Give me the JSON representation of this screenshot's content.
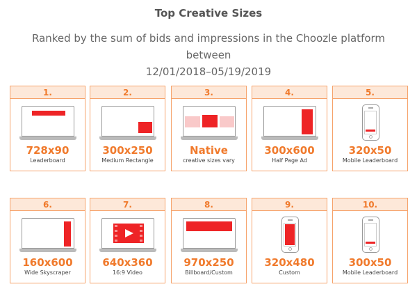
{
  "header": {
    "title": "Top Creative Sizes",
    "subtitle_line1": "Ranked by the sum of bids and impressions in the Choozle platform between",
    "subtitle_line2": "12/01/2018–05/19/2019"
  },
  "cards": [
    {
      "rank": "1.",
      "size": "728x90",
      "desc": "Leaderboard"
    },
    {
      "rank": "2.",
      "size": "300x250",
      "desc": "Medium Rectangle"
    },
    {
      "rank": "3.",
      "size": "Native",
      "desc": "creative sizes vary"
    },
    {
      "rank": "4.",
      "size": "300x600",
      "desc": "Half Page Ad"
    },
    {
      "rank": "5.",
      "size": "320x50",
      "desc": "Mobile Leaderboard"
    },
    {
      "rank": "6.",
      "size": "160x600",
      "desc": "Wide Skyscraper"
    },
    {
      "rank": "7.",
      "size": "640x360",
      "desc": "16:9 Video"
    },
    {
      "rank": "8.",
      "size": "970x250",
      "desc": "Billboard/Custom"
    },
    {
      "rank": "9.",
      "size": "320x480",
      "desc": "Custom"
    },
    {
      "rank": "10.",
      "size": "300x50",
      "desc": "Mobile Leaderboard"
    }
  ],
  "colors": {
    "accent": "#f07a2c",
    "ad_fill": "#ee2426",
    "header_bg": "#fde8d9"
  }
}
